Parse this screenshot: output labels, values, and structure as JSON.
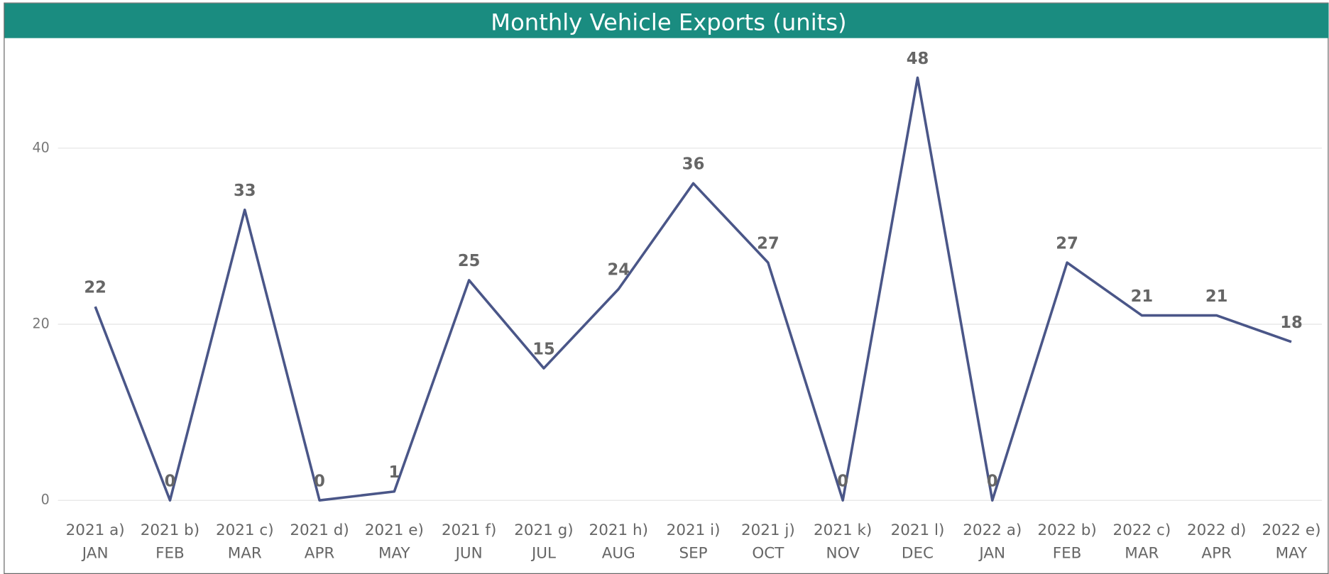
{
  "chart_data": {
    "type": "line",
    "title": "Monthly Vehicle Exports (units)",
    "categories": [
      [
        "2021 a)",
        "JAN"
      ],
      [
        "2021 b)",
        "FEB"
      ],
      [
        "2021 c)",
        "MAR"
      ],
      [
        "2021 d)",
        "APR"
      ],
      [
        "2021 e)",
        "MAY"
      ],
      [
        "2021 f)",
        "JUN"
      ],
      [
        "2021 g)",
        "JUL"
      ],
      [
        "2021 h)",
        "AUG"
      ],
      [
        "2021 i)",
        "SEP"
      ],
      [
        "2021 j)",
        "OCT"
      ],
      [
        "2021 k)",
        "NOV"
      ],
      [
        "2021 l)",
        "DEC"
      ],
      [
        "2022 a)",
        "JAN"
      ],
      [
        "2022 b)",
        "FEB"
      ],
      [
        "2022 c)",
        "MAR"
      ],
      [
        "2022 d)",
        "APR"
      ],
      [
        "2022 e)",
        "MAY"
      ]
    ],
    "values": [
      22,
      0,
      33,
      0,
      1,
      25,
      15,
      24,
      36,
      27,
      0,
      48,
      0,
      27,
      21,
      21,
      18
    ],
    "color": "#4a5688",
    "ylim": [
      0,
      50
    ],
    "yticks": [
      0,
      20,
      40
    ],
    "grid": true
  }
}
